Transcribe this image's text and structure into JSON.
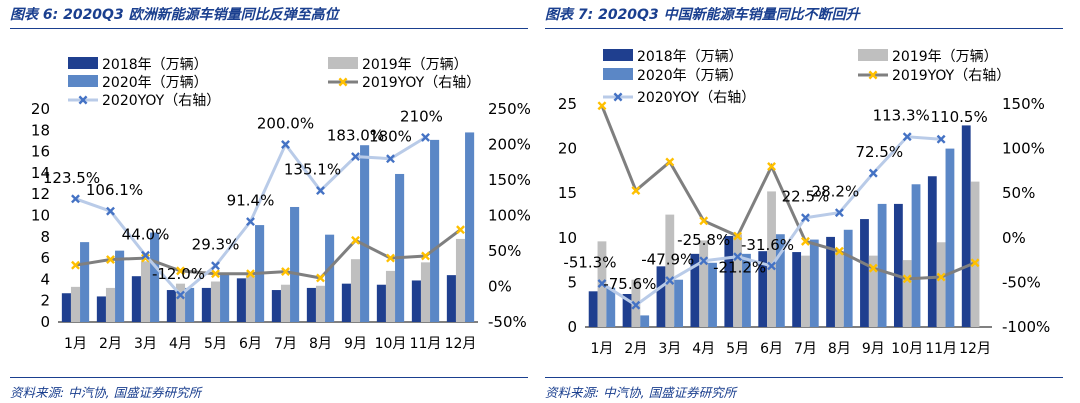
{
  "charts": [
    {
      "title": "图表 6:  2020Q3 欧洲新能源车销量同比反弹至高位",
      "source": "资料来源:  中汽协,  国盛证券研究所"
    },
    {
      "title": "图表 7:  2020Q3 中国新能源车销量同比不断回升",
      "source": "资料来源:  中汽协,  国盛证券研究所"
    }
  ],
  "chart_data": [
    {
      "type": "bar",
      "categories": [
        "1月",
        "2月",
        "3月",
        "4月",
        "5月",
        "6月",
        "7月",
        "8月",
        "9月",
        "10月",
        "11月",
        "12月"
      ],
      "series": [
        {
          "name": "2018年（万辆）",
          "kind": "bar",
          "axis": "left",
          "color": "#1f3f8f",
          "values": [
            2.7,
            2.4,
            4.3,
            3.0,
            3.2,
            4.1,
            3.0,
            3.2,
            3.6,
            3.5,
            3.9,
            4.4
          ]
        },
        {
          "name": "2019年（万辆）",
          "kind": "bar",
          "axis": "left",
          "color": "#bfbfbf",
          "values": [
            3.3,
            3.2,
            5.7,
            3.6,
            3.8,
            4.4,
            3.5,
            3.4,
            5.9,
            4.8,
            5.6,
            7.8
          ]
        },
        {
          "name": "2020年（万辆）",
          "kind": "bar",
          "axis": "left",
          "color": "#5b87c6",
          "values": [
            7.5,
            6.7,
            8.4,
            3.2,
            4.6,
            9.1,
            10.8,
            8.2,
            16.6,
            13.9,
            17.1,
            17.8
          ]
        },
        {
          "name": "2019YOY（右轴）",
          "kind": "line",
          "axis": "right",
          "color": "#7f7f7f",
          "marker_color": "#ffc000",
          "values": [
            30,
            38,
            40,
            22,
            18,
            18,
            21,
            12,
            65,
            40,
            43,
            80
          ]
        },
        {
          "name": "2020YOY（右轴）",
          "kind": "line",
          "axis": "right",
          "color": "#b9cbe8",
          "marker_color": "#4472c4",
          "values": [
            123.5,
            106.1,
            44.0,
            -12.0,
            29.3,
            91.4,
            200.0,
            135.1,
            183.0,
            180.0,
            210.0,
            null
          ],
          "labels": [
            "123.5%",
            "106.1%",
            "44.0%",
            "-12.0%",
            "29.3%",
            "91.4%",
            "200.0%",
            "135.1%",
            "183.0%",
            "180%",
            "210%",
            ""
          ]
        }
      ],
      "ylim": [
        0,
        20
      ],
      "yticks": [
        0,
        2,
        4,
        6,
        8,
        10,
        12,
        14,
        16,
        18,
        20
      ],
      "y2lim": [
        -50,
        250
      ],
      "y2ticks": [
        "-50%",
        "0%",
        "50%",
        "100%",
        "150%",
        "200%",
        "250%"
      ],
      "grid": false,
      "legend": "top"
    },
    {
      "type": "bar",
      "categories": [
        "1月",
        "2月",
        "3月",
        "4月",
        "5月",
        "6月",
        "7月",
        "8月",
        "9月",
        "10月",
        "11月",
        "12月"
      ],
      "series": [
        {
          "name": "2018年（万辆）",
          "kind": "bar",
          "axis": "left",
          "color": "#1f3f8f",
          "values": [
            4.0,
            3.7,
            6.8,
            8.2,
            10.2,
            8.5,
            8.4,
            10.1,
            12.1,
            13.8,
            16.9,
            22.6
          ]
        },
        {
          "name": "2019年（万辆）",
          "kind": "bar",
          "axis": "left",
          "color": "#bfbfbf",
          "values": [
            9.6,
            5.3,
            12.6,
            9.7,
            10.4,
            15.2,
            8.0,
            8.5,
            8.0,
            7.5,
            9.5,
            16.3
          ]
        },
        {
          "name": "2020年（万辆）",
          "kind": "bar",
          "axis": "left",
          "color": "#5b87c6",
          "values": [
            4.4,
            1.3,
            5.3,
            7.2,
            8.2,
            10.4,
            9.8,
            10.9,
            13.8,
            16.0,
            20.0,
            null
          ]
        },
        {
          "name": "2019YOY（右轴）",
          "kind": "line",
          "axis": "right",
          "color": "#7f7f7f",
          "marker_color": "#ffc000",
          "values": [
            148,
            53,
            85,
            19,
            2,
            80,
            -4,
            -15,
            -34,
            -46,
            -44,
            -28
          ]
        },
        {
          "name": "2020YOY（右轴）",
          "kind": "line",
          "axis": "right",
          "color": "#b9cbe8",
          "marker_color": "#4472c4",
          "values": [
            -51.3,
            -75.6,
            -47.9,
            -25.8,
            -21.2,
            -31.6,
            22.5,
            28.2,
            72.5,
            113.3,
            110.5,
            null
          ],
          "labels": [
            "-51.3%",
            "-75.6%",
            "-47.9%",
            "-25.8%",
            "-21.2%",
            "-31.6%",
            "22.5%",
            "28.2%",
            "72.5%",
            "113.3%",
            "110.5%",
            ""
          ]
        }
      ],
      "ylim": [
        0,
        25
      ],
      "yticks": [
        0,
        5,
        10,
        15,
        20,
        25
      ],
      "y2lim": [
        -100,
        150
      ],
      "y2ticks": [
        "-100%",
        "-50%",
        "0%",
        "50%",
        "100%",
        "150%"
      ],
      "grid": false,
      "legend": "top"
    }
  ]
}
